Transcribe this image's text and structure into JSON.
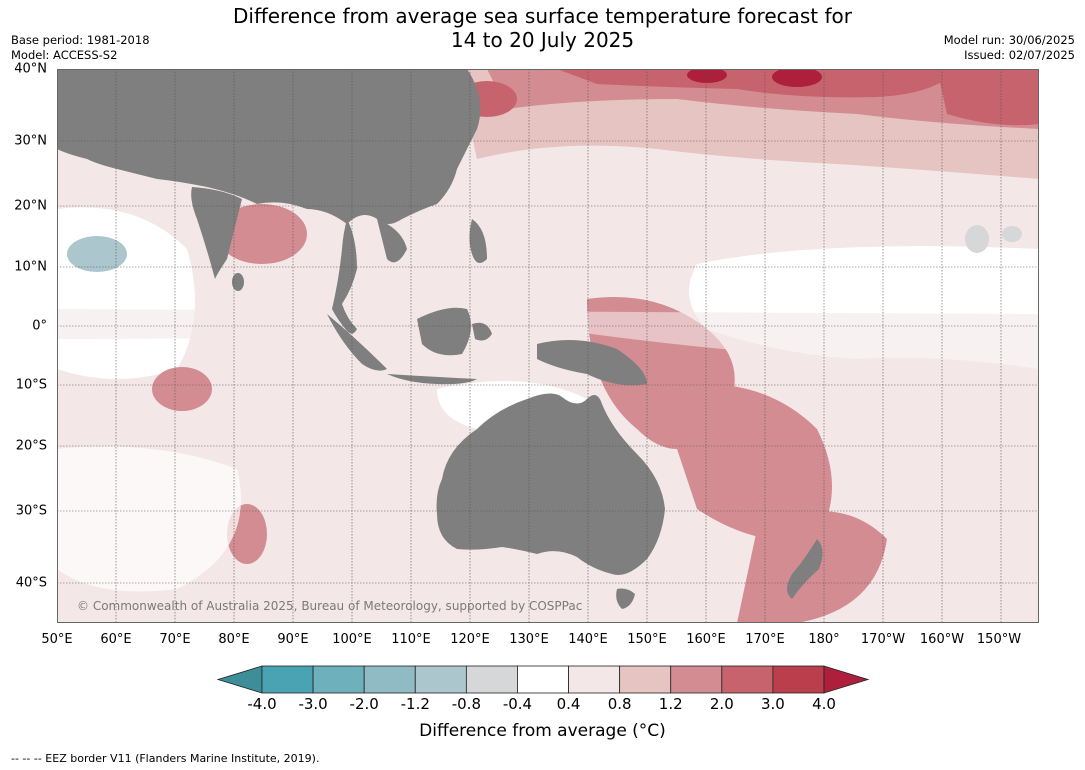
{
  "title_line1": "Difference from average sea surface temperature forecast for",
  "title_line2": "14 to 20 July 2025",
  "base_period": "Base period: 1981-2018",
  "model": "Model: ACCESS-S2",
  "model_run": "Model run: 30/06/2025",
  "issued": "Issued: 02/07/2025",
  "lat_labels": [
    "40°N",
    "30°N",
    "20°N",
    "10°N",
    "0°",
    "10°S",
    "20°S",
    "30°S",
    "40°S"
  ],
  "lon_labels": [
    "50°E",
    "60°E",
    "70°E",
    "80°E",
    "90°E",
    "100°E",
    "110°E",
    "120°E",
    "130°E",
    "140°E",
    "150°E",
    "160°E",
    "170°E",
    "180°",
    "170°W",
    "160°W",
    "150°W"
  ],
  "copyright": "© Commonwealth of Australia 2025, Bureau of Meteorology, supported by COSPPac",
  "colorbar": {
    "ticks": [
      "-4.0",
      "-3.0",
      "-2.0",
      "-1.2",
      "-0.8",
      "-0.4",
      "0.4",
      "0.8",
      "1.2",
      "2.0",
      "3.0",
      "4.0"
    ],
    "colors": [
      "#3d8e99",
      "#4aa3b3",
      "#6fb0bd",
      "#90bac4",
      "#abc6cc",
      "#d5d7d8",
      "#ffffff",
      "#f4e7e7",
      "#e6c4c2",
      "#d48c93",
      "#c7636d",
      "#bb3e4d",
      "#ad1f3a"
    ],
    "title": "Difference from average (°C)"
  },
  "footer": "--  --  -- EEZ border V11 (Flanders Marine Institute, 2019)."
}
